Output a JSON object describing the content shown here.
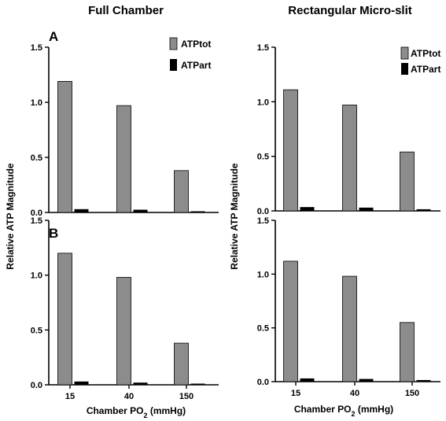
{
  "figure": {
    "column_titles": [
      "Full Chamber",
      "Rectangular Micro-slit"
    ],
    "ylabel": "Relative ATP Magnitude",
    "xlabel_main": "Chamber PO",
    "xlabel_sub": "2",
    "xlabel_tail": " (mmHg)",
    "panel_letters": [
      "A",
      "B"
    ],
    "legend": [
      {
        "label": "ATPtot",
        "color": "#8c8c8c"
      },
      {
        "label": "ATPart",
        "color": "#000000"
      }
    ]
  },
  "chart_data": [
    {
      "type": "bar",
      "column_title": "Full Chamber",
      "panel": "A",
      "categories": [
        "15",
        "40",
        "150"
      ],
      "series": [
        {
          "name": "ATPtot",
          "values": [
            1.19,
            0.97,
            0.38
          ]
        },
        {
          "name": "ATPart",
          "values": [
            0.03,
            0.025,
            0.01
          ]
        }
      ],
      "ylim": [
        0,
        1.5
      ],
      "yticks": [
        "0.0",
        "0.5",
        "1.0",
        "1.5"
      ],
      "legend_position": "top-right"
    },
    {
      "type": "bar",
      "column_title": "Rectangular Micro-slit",
      "categories": [
        "15",
        "40",
        "150"
      ],
      "series": [
        {
          "name": "ATPtot",
          "values": [
            1.11,
            0.97,
            0.54
          ]
        },
        {
          "name": "ATPart",
          "values": [
            0.035,
            0.03,
            0.015
          ]
        }
      ],
      "ylim": [
        0,
        1.5
      ],
      "yticks": [
        "0.0",
        "0.5",
        "1.0",
        "1.5"
      ],
      "legend_position": "top-right"
    },
    {
      "type": "bar",
      "column_title": "Full Chamber",
      "panel": "B",
      "categories": [
        "15",
        "40",
        "150"
      ],
      "series": [
        {
          "name": "ATPtot",
          "values": [
            1.2,
            0.98,
            0.38
          ]
        },
        {
          "name": "ATPart",
          "values": [
            0.03,
            0.02,
            0.005
          ]
        }
      ],
      "ylim": [
        0,
        1.5
      ],
      "yticks": [
        "0.0",
        "0.5",
        "1.0",
        "1.5"
      ],
      "xlabel": "Chamber PO2 (mmHg)"
    },
    {
      "type": "bar",
      "column_title": "Rectangular Micro-slit",
      "categories": [
        "15",
        "40",
        "150"
      ],
      "series": [
        {
          "name": "ATPtot",
          "values": [
            1.12,
            0.98,
            0.55
          ]
        },
        {
          "name": "ATPart",
          "values": [
            0.03,
            0.025,
            0.015
          ]
        }
      ],
      "ylim": [
        0,
        1.5
      ],
      "yticks": [
        "0.0",
        "0.5",
        "1.0",
        "1.5"
      ],
      "xlabel": "Chamber PO2 (mmHg)"
    }
  ]
}
